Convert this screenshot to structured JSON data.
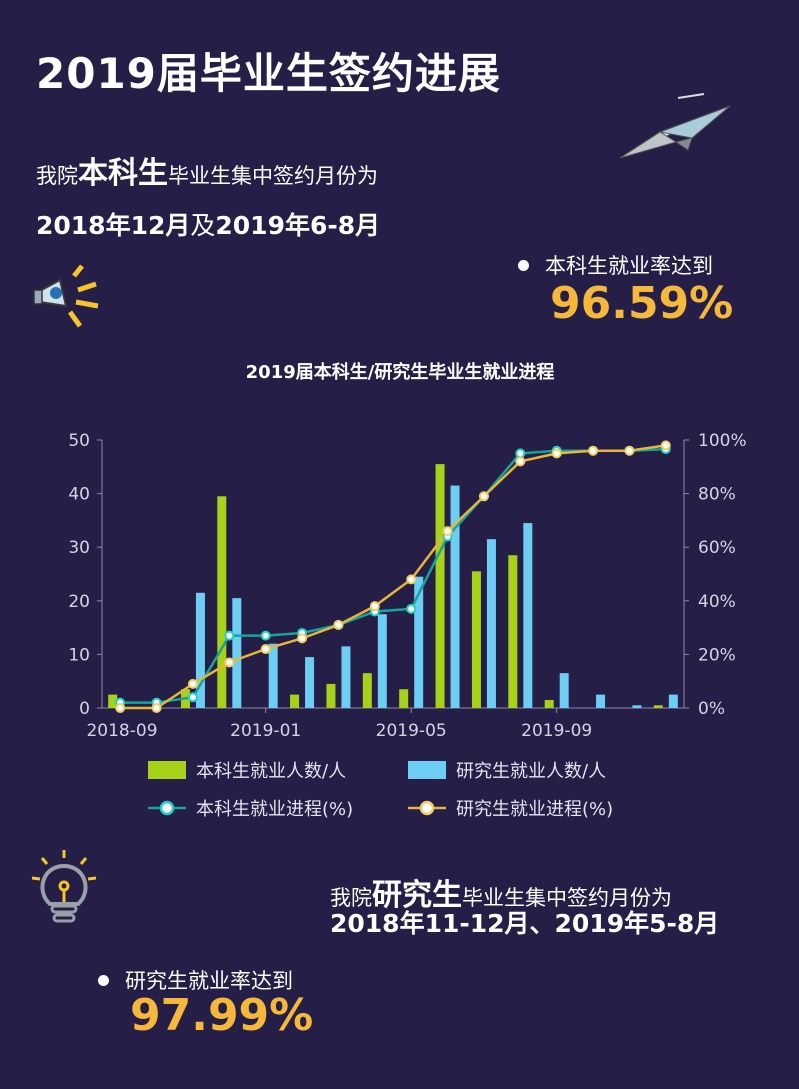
{
  "title": "2019届毕业生签约进展",
  "undergrad": {
    "intro_pre": "我院",
    "intro_em": "本科生",
    "intro_post": "毕业生集中签约月份为",
    "months_a": "2018年12月",
    "months_join": "及",
    "months_b": "2019年6-8月",
    "rate_label": "本科生就业率达到",
    "rate": "96.59%"
  },
  "graduate": {
    "intro_pre": "我院",
    "intro_em": "研究生",
    "intro_post": "毕业生集中签约月份为",
    "months": "2018年11-12月、2019年5-8月",
    "rate_label": "研究生就业率达到",
    "rate": "97.99%"
  },
  "icons": {
    "plane": "paper-plane-icon",
    "megaphone": "megaphone-icon",
    "bulb": "lightbulb-icon"
  },
  "colors": {
    "background": "#251e47",
    "undergrad_bar": "#a7d21a",
    "graduate_bar": "#6dcdf2",
    "undergrad_line": "#17a39b",
    "graduate_line": "#e6b53a",
    "rate_text": "#f6b83a"
  },
  "chart_data": {
    "type": "bar",
    "title": "2019届本科生/研究生毕业生就业进程",
    "categories": [
      "2018-09",
      "2018-10",
      "2018-11",
      "2018-12",
      "2019-01",
      "2019-02",
      "2019-03",
      "2019-04",
      "2019-05",
      "2019-06",
      "2019-07",
      "2019-08",
      "2019-09",
      "2019-10",
      "2019-11",
      "2019-12"
    ],
    "x_tick_labels": [
      "2018-09",
      "2019-01",
      "2019-05",
      "2019-09"
    ],
    "series": [
      {
        "name": "本科生就业人数/人",
        "axis": "left",
        "kind": "bar",
        "values": [
          2.5,
          0,
          3.5,
          39.5,
          0,
          2.5,
          4.5,
          6.5,
          3.5,
          45.5,
          25.5,
          28.5,
          1.5,
          0,
          0,
          0.5
        ]
      },
      {
        "name": "研究生就业人数/人",
        "axis": "left",
        "kind": "bar",
        "values": [
          0,
          0,
          21.5,
          20.5,
          12,
          9.5,
          11.5,
          17.5,
          24.5,
          41.5,
          31.5,
          34.5,
          6.5,
          2.5,
          0.5,
          2.5
        ]
      },
      {
        "name": "本科生就业进程(%)",
        "axis": "right",
        "kind": "line",
        "values": [
          2,
          2,
          4,
          27,
          27,
          28,
          31,
          36,
          37,
          64,
          79,
          95,
          96,
          96,
          96,
          96.59
        ]
      },
      {
        "name": "研究生就业进程(%)",
        "axis": "right",
        "kind": "line",
        "values": [
          0,
          0,
          9,
          17,
          22,
          26,
          31,
          38,
          48,
          66,
          79,
          92,
          95,
          96,
          96,
          97.99
        ]
      }
    ],
    "ylim_left": [
      0,
      50
    ],
    "y_ticks_left": [
      "0",
      "10",
      "20",
      "30",
      "40",
      "50"
    ],
    "ylim_right": [
      0,
      100
    ],
    "y_ticks_right": [
      "0%",
      "20%",
      "40%",
      "60%",
      "80%",
      "100%"
    ],
    "legend_position": "bottom",
    "grid": false
  }
}
